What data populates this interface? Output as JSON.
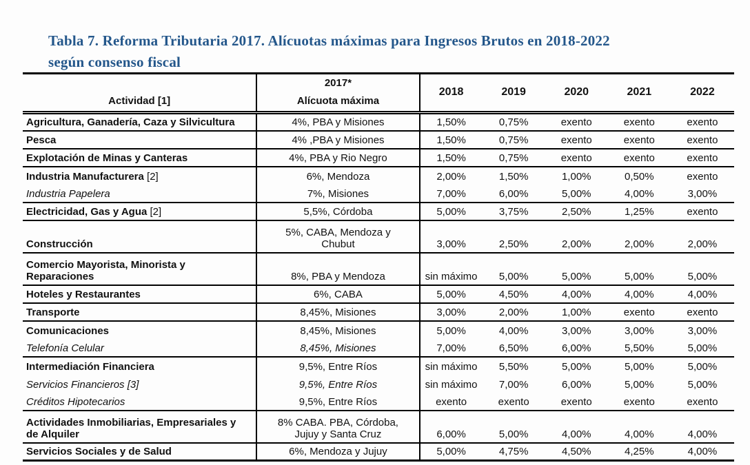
{
  "title": {
    "line1": "Tabla 7. Reforma Tributaria 2017. Alícuotas máximas para Ingresos Brutos en 2018-2022",
    "line2": "según consenso fiscal"
  },
  "colors": {
    "title_blue": "#24578b",
    "text": "#111111",
    "border": "#000000",
    "background": "#fdfdfd"
  },
  "table": {
    "header": {
      "activity": "Actividad [1]",
      "col2017_year": "2017*",
      "col2017_label": "Alícuota máxima",
      "years": [
        "2018",
        "2019",
        "2020",
        "2021",
        "2022"
      ]
    },
    "rows": [
      {
        "activity": "Agricultura, Ganadería, Caza y Silvicultura",
        "style": "bold",
        "separator": true,
        "tax2017": "4%, PBA y Misiones",
        "values": [
          "1,50%",
          "0,75%",
          "exento",
          "exento",
          "exento"
        ]
      },
      {
        "activity": "Pesca",
        "style": "bold",
        "separator": true,
        "tax2017": "4% ,PBA y Misiones",
        "values": [
          "1,50%",
          "0,75%",
          "exento",
          "exento",
          "exento"
        ]
      },
      {
        "activity": "Explotación de Minas y Canteras",
        "style": "bold",
        "separator": true,
        "tax2017": "4%, PBA y Rio Negro",
        "values": [
          "1,50%",
          "0,75%",
          "exento",
          "exento",
          "exento"
        ]
      },
      {
        "activity": "Industria Manufacturera",
        "ref": "[2]",
        "style": "bold",
        "separator": true,
        "tax2017": "6%, Mendoza",
        "values": [
          "2,00%",
          "1,50%",
          "1,00%",
          "0,50%",
          "exento"
        ]
      },
      {
        "activity": "Industria Papelera",
        "style": "italic",
        "separator": false,
        "tax2017": "7%, Misiones",
        "values": [
          "7,00%",
          "6,00%",
          "5,00%",
          "4,00%",
          "3,00%"
        ]
      },
      {
        "activity": "Electricidad, Gas y Agua",
        "ref": "[2]",
        "style": "bold",
        "separator": true,
        "tax2017": "5,5%, Córdoba",
        "values": [
          "5,00%",
          "3,75%",
          "2,50%",
          "1,25%",
          "exento"
        ]
      },
      {
        "activity": "Construcción",
        "style": "bold",
        "separator": true,
        "tall": true,
        "tax2017": "5%, CABA, Mendoza y\nChubut",
        "values": [
          "3,00%",
          "2,50%",
          "2,00%",
          "2,00%",
          "2,00%"
        ]
      },
      {
        "activity": "Comercio Mayorista, Minorista y\nReparaciones",
        "style": "bold",
        "separator": true,
        "tall": true,
        "tax2017": "8%, PBA y Mendoza",
        "values": [
          "sin máximo",
          "5,00%",
          "5,00%",
          "5,00%",
          "5,00%"
        ]
      },
      {
        "activity": "Hoteles y Restaurantes",
        "style": "bold",
        "separator": true,
        "tax2017": "6%, CABA",
        "values": [
          "5,00%",
          "4,50%",
          "4,00%",
          "4,00%",
          "4,00%"
        ]
      },
      {
        "activity": "Transporte",
        "style": "bold",
        "separator": true,
        "tax2017": "8,45%, Misiones",
        "values": [
          "3,00%",
          "2,00%",
          "1,00%",
          "exento",
          "exento"
        ]
      },
      {
        "activity": "Comunicaciones",
        "style": "bold",
        "separator": true,
        "tax2017": "8,45%, Misiones",
        "values": [
          "5,00%",
          "4,00%",
          "3,00%",
          "3,00%",
          "3,00%"
        ]
      },
      {
        "activity": "Telefonía Celular",
        "style": "italic",
        "separator": false,
        "tax_italic": true,
        "tax2017": "8,45%, Misiones",
        "values": [
          "7,00%",
          "6,50%",
          "6,00%",
          "5,50%",
          "5,00%"
        ]
      },
      {
        "activity": "Intermediación Financiera",
        "style": "bold",
        "separator": true,
        "tax2017": "9,5%, Entre Ríos",
        "values": [
          "sin máximo",
          "5,50%",
          "5,00%",
          "5,00%",
          "5,00%"
        ]
      },
      {
        "activity": "Servicios Financieros",
        "ref": "[3]",
        "style": "italic",
        "separator": false,
        "tax_italic": true,
        "tax2017": "9,5%, Entre Ríos",
        "values": [
          "sin máximo",
          "7,00%",
          "6,00%",
          "5,00%",
          "5,00%"
        ]
      },
      {
        "activity": "Créditos Hipotecarios",
        "style": "italic",
        "separator": false,
        "tax2017": "9,5%, Entre Ríos",
        "values": [
          "exento",
          "exento",
          "exento",
          "exento",
          "exento"
        ]
      },
      {
        "activity": "Actividades Inmobiliarias, Empresariales y\nde Alquiler",
        "style": "bold",
        "separator": true,
        "tall": true,
        "tax2017": "8% CABA. PBA, Córdoba,\nJujuy y Santa Cruz",
        "values": [
          "6,00%",
          "5,00%",
          "4,00%",
          "4,00%",
          "4,00%"
        ]
      },
      {
        "activity": "Servicios Sociales y de Salud",
        "style": "bold",
        "separator": true,
        "tax2017": "6%, Mendoza y Jujuy",
        "values": [
          "5,00%",
          "4,75%",
          "4,50%",
          "4,25%",
          "4,00%"
        ]
      }
    ]
  },
  "chart_data": {
    "type": "table",
    "title": "Tabla 7. Reforma Tributaria 2017. Alícuotas máximas para Ingresos Brutos en 2018-2022 según consenso fiscal",
    "columns": [
      "Actividad [1]",
      "2017* Alícuota máxima",
      "2018",
      "2019",
      "2020",
      "2021",
      "2022"
    ],
    "rows": [
      [
        "Agricultura, Ganadería, Caza y Silvicultura",
        "4%, PBA y Misiones",
        "1,50%",
        "0,75%",
        "exento",
        "exento",
        "exento"
      ],
      [
        "Pesca",
        "4% ,PBA y Misiones",
        "1,50%",
        "0,75%",
        "exento",
        "exento",
        "exento"
      ],
      [
        "Explotación de Minas y Canteras",
        "4%, PBA y Rio Negro",
        "1,50%",
        "0,75%",
        "exento",
        "exento",
        "exento"
      ],
      [
        "Industria Manufacturera [2]",
        "6%, Mendoza",
        "2,00%",
        "1,50%",
        "1,00%",
        "0,50%",
        "exento"
      ],
      [
        "Industria Papelera",
        "7%, Misiones",
        "7,00%",
        "6,00%",
        "5,00%",
        "4,00%",
        "3,00%"
      ],
      [
        "Electricidad, Gas y Agua [2]",
        "5,5%, Córdoba",
        "5,00%",
        "3,75%",
        "2,50%",
        "1,25%",
        "exento"
      ],
      [
        "Construcción",
        "5%, CABA, Mendoza y Chubut",
        "3,00%",
        "2,50%",
        "2,00%",
        "2,00%",
        "2,00%"
      ],
      [
        "Comercio Mayorista, Minorista y Reparaciones",
        "8%, PBA y Mendoza",
        "sin máximo",
        "5,00%",
        "5,00%",
        "5,00%",
        "5,00%"
      ],
      [
        "Hoteles y Restaurantes",
        "6%, CABA",
        "5,00%",
        "4,50%",
        "4,00%",
        "4,00%",
        "4,00%"
      ],
      [
        "Transporte",
        "8,45%, Misiones",
        "3,00%",
        "2,00%",
        "1,00%",
        "exento",
        "exento"
      ],
      [
        "Comunicaciones",
        "8,45%, Misiones",
        "5,00%",
        "4,00%",
        "3,00%",
        "3,00%",
        "3,00%"
      ],
      [
        "Telefonía Celular",
        "8,45%, Misiones",
        "7,00%",
        "6,50%",
        "6,00%",
        "5,50%",
        "5,00%"
      ],
      [
        "Intermediación Financiera",
        "9,5%, Entre Ríos",
        "sin máximo",
        "5,50%",
        "5,00%",
        "5,00%",
        "5,00%"
      ],
      [
        "Servicios Financieros [3]",
        "9,5%, Entre Ríos",
        "sin máximo",
        "7,00%",
        "6,00%",
        "5,00%",
        "5,00%"
      ],
      [
        "Créditos Hipotecarios",
        "9,5%, Entre Ríos",
        "exento",
        "exento",
        "exento",
        "exento",
        "exento"
      ],
      [
        "Actividades Inmobiliarias, Empresariales y de Alquiler",
        "8% CABA. PBA, Córdoba, Jujuy y Santa Cruz",
        "6,00%",
        "5,00%",
        "4,00%",
        "4,00%",
        "4,00%"
      ],
      [
        "Servicios Sociales y de Salud",
        "6%, Mendoza y Jujuy",
        "5,00%",
        "4,75%",
        "4,50%",
        "4,25%",
        "4,00%"
      ]
    ]
  }
}
